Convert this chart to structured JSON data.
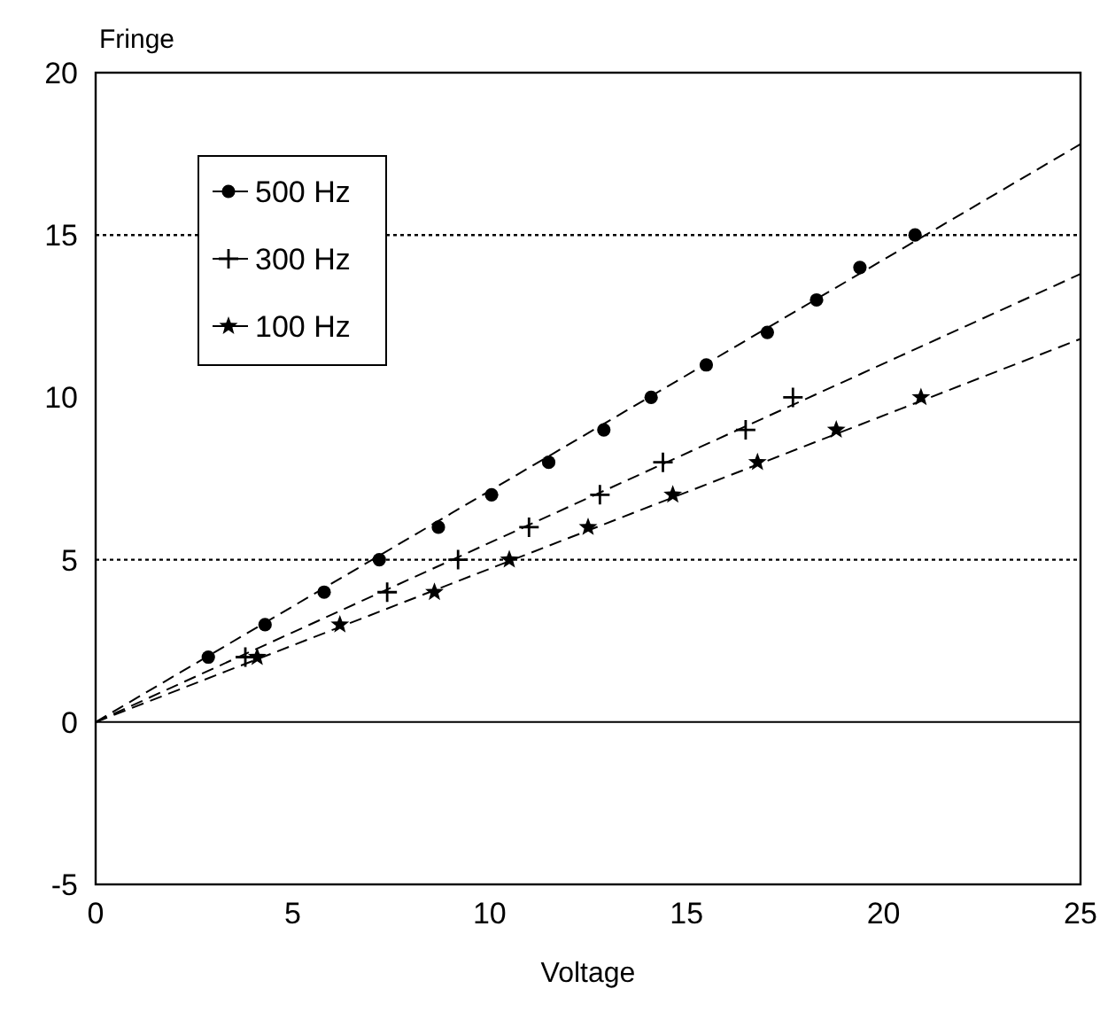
{
  "chart_data": {
    "type": "scatter",
    "xlabel": "Voltage",
    "ylabel": "Fringe",
    "xlim": [
      0,
      25
    ],
    "xticks": [
      0,
      5,
      10,
      15,
      20,
      25
    ],
    "ylim": [
      -5,
      20
    ],
    "yticks": [
      -5,
      0,
      5,
      10,
      15,
      20
    ],
    "grid": false,
    "legend": "top left",
    "ref_lines": [
      {
        "axis": "y",
        "value": 0,
        "color": "#000000",
        "line_style": "solid"
      },
      {
        "axis": "y",
        "value": 5,
        "color": "#000000",
        "line_style": "dotted"
      },
      {
        "axis": "y",
        "value": 15,
        "color": "#000000",
        "line_style": "dotted"
      }
    ],
    "series": [
      {
        "name": "500 Hz",
        "marker": "circle",
        "color": "#000000",
        "x": [
          2.86,
          4.3,
          5.8,
          7.2,
          8.7,
          10.05,
          11.5,
          12.9,
          14.1,
          15.5,
          17.05,
          18.3,
          19.4,
          20.8
        ],
        "values": [
          2,
          3,
          4,
          5,
          6,
          7,
          8,
          9,
          10,
          11,
          12,
          13,
          14,
          15
        ]
      },
      {
        "name": "300 Hz",
        "marker": "cross",
        "color": "#000000",
        "x": [
          3.8,
          7.4,
          9.2,
          11.0,
          12.8,
          14.4,
          16.5,
          17.7
        ],
        "values": [
          2,
          4,
          5,
          6,
          7,
          8,
          9,
          10
        ]
      },
      {
        "name": "100 Hz",
        "marker": "star",
        "color": "#000000",
        "x": [
          4.1,
          6.2,
          8.6,
          10.5,
          12.5,
          14.65,
          16.8,
          18.8,
          20.95
        ],
        "values": [
          2,
          3,
          4,
          5,
          6,
          7,
          8,
          9,
          10
        ]
      },
      {
        "type": "line",
        "marker": "none",
        "line_style": "dashed",
        "color": "#000000",
        "x": [
          0,
          25
        ],
        "values": [
          0,
          17.8
        ]
      },
      {
        "type": "line",
        "marker": "none",
        "line_style": "dashed",
        "color": "#000000",
        "x": [
          0,
          25
        ],
        "values": [
          0,
          13.8
        ]
      },
      {
        "type": "line",
        "marker": "none",
        "line_style": "dashed",
        "color": "#000000",
        "x": [
          0,
          25
        ],
        "values": [
          0,
          11.8
        ]
      }
    ]
  }
}
